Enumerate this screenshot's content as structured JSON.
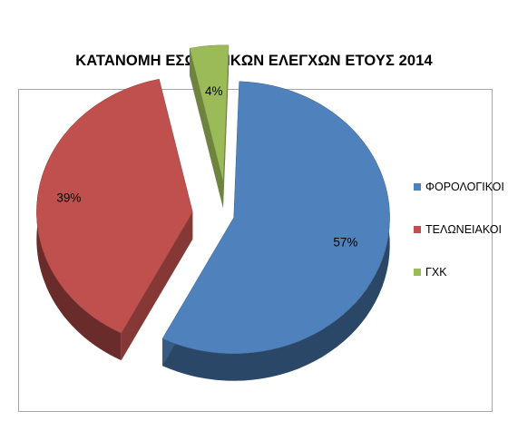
{
  "chart_data": {
    "type": "pie",
    "title": "ΚΑΤΑΝΟΜΗ ΕΣΩΤΕΡΙΚΩΝ ΕΛΕΓΧΩΝ  ΕΤΟΥΣ 2014",
    "three_d": true,
    "exploded": true,
    "legend_position": "right",
    "slices": [
      {
        "label": "ΦΟΡΟΛΟΓΙΚΟΙ",
        "value": 57,
        "value_label": "57%",
        "color": "#4f81bd"
      },
      {
        "label": "ΤΕΛΩΝΕΙΑΚΟΙ",
        "value": 39,
        "value_label": "39%",
        "color": "#c0504d"
      },
      {
        "label": "ΓΧΚ",
        "value": 4,
        "value_label": "4%",
        "color": "#9bbb59"
      }
    ]
  }
}
